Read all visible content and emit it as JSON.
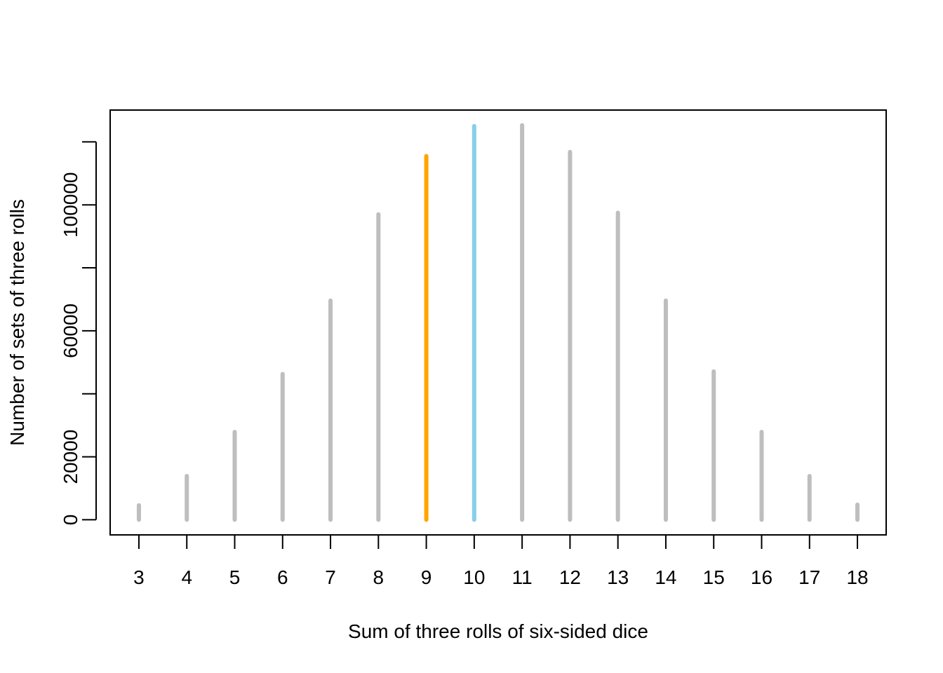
{
  "chart_data": {
    "type": "bar",
    "title": "",
    "xlabel": "Sum of three rolls of six-sided dice",
    "ylabel": "Number of sets of three rolls",
    "categories": [
      "3",
      "4",
      "5",
      "6",
      "7",
      "8",
      "9",
      "10",
      "11",
      "12",
      "13",
      "14",
      "15",
      "16",
      "17",
      "18"
    ],
    "x": [
      3,
      4,
      5,
      6,
      7,
      8,
      9,
      10,
      11,
      12,
      13,
      14,
      15,
      16,
      17,
      18
    ],
    "values": [
      4600,
      13900,
      27900,
      46300,
      69600,
      97000,
      115500,
      125000,
      125300,
      116800,
      97500,
      69600,
      47100,
      27900,
      13900,
      4800
    ],
    "highlight": [
      {
        "x": 9,
        "color": "#FFA500"
      },
      {
        "x": 10,
        "color": "#87CEEB"
      }
    ],
    "bar_color": "#BEBEBE",
    "xlim": [
      2.4,
      18.6
    ],
    "ylim": [
      -4800,
      130100
    ],
    "y_ticks": [
      0,
      20000,
      40000,
      60000,
      80000,
      100000,
      120000
    ],
    "y_tick_labels": [
      "0",
      "20000",
      "",
      "60000",
      "",
      "100000",
      ""
    ],
    "grid": false,
    "legend": "none"
  }
}
